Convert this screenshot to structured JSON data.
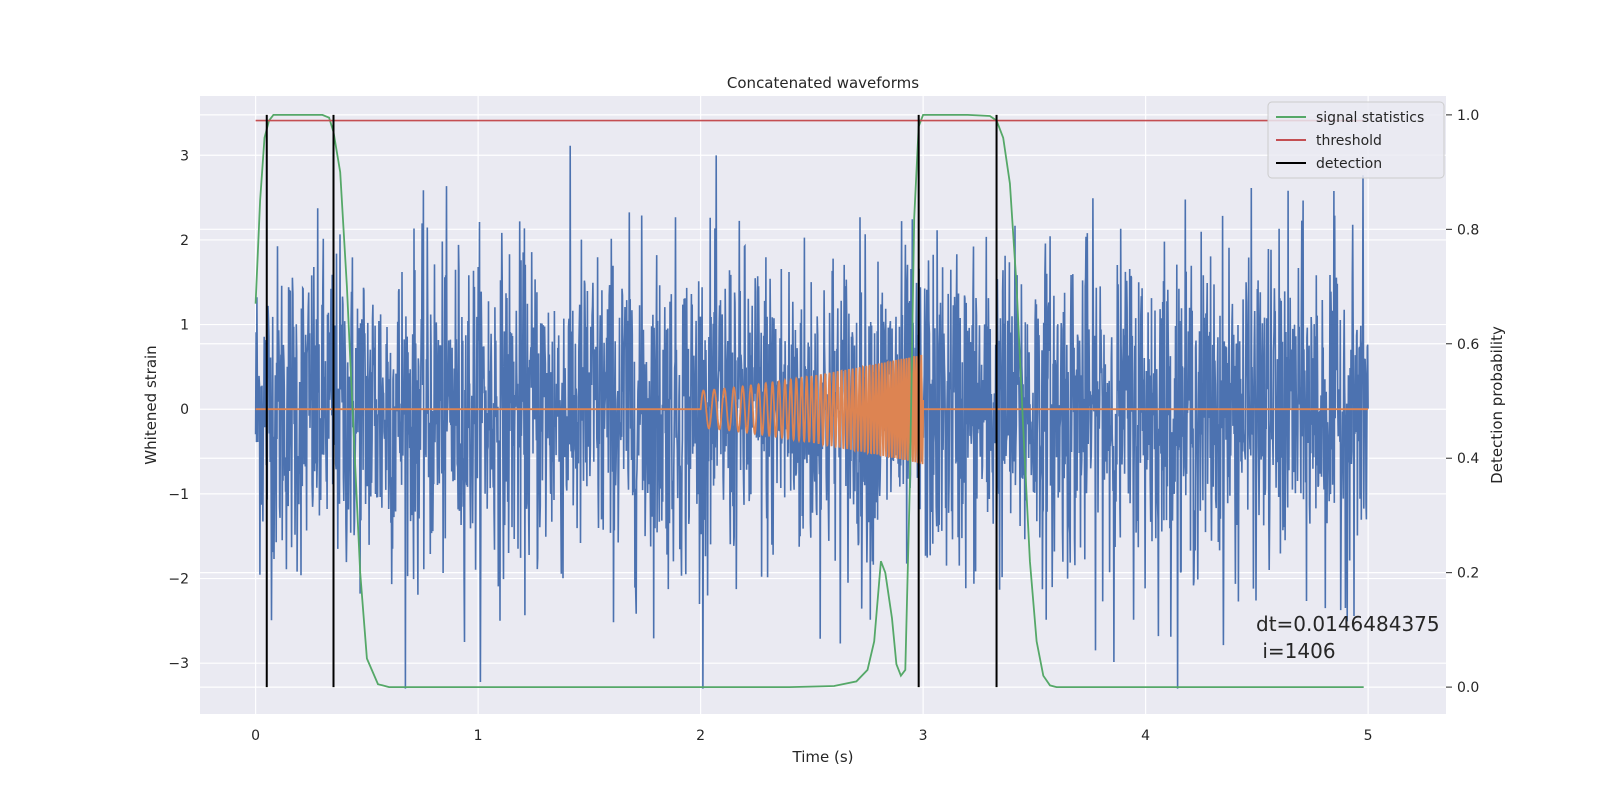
{
  "chart_data": {
    "type": "line",
    "title": "Concatenated waveforms",
    "xlabel": "Time (s)",
    "ylabel": "Whitened strain",
    "y2label": "Detection probability",
    "xlim": [
      -0.25,
      5.35
    ],
    "ylim": [
      -3.6,
      3.7
    ],
    "y2lim": [
      -0.047,
      1.033
    ],
    "xticks": [
      0,
      1,
      2,
      3,
      4,
      5
    ],
    "yticks": [
      -3,
      -2,
      -1,
      0,
      1,
      2,
      3
    ],
    "y2ticks": [
      0.0,
      0.2,
      0.4,
      0.6,
      0.8,
      1.0
    ],
    "xtick_labels": [
      "0",
      "1",
      "2",
      "3",
      "4",
      "5"
    ],
    "ytick_labels": [
      "−3",
      "−2",
      "−1",
      "0",
      "1",
      "2",
      "3"
    ],
    "y2tick_labels": [
      "0.0",
      "0.2",
      "0.4",
      "0.6",
      "0.8",
      "1.0"
    ],
    "grid": true,
    "legend_position": "top-right",
    "series": [
      {
        "name": "whitened strain",
        "color": "#4c72b0",
        "axis": "left",
        "x_range": [
          0,
          5
        ],
        "amplitude_range": [
          -3.3,
          3.3
        ],
        "description_kind": "noise"
      },
      {
        "name": "waveform",
        "color": "#dd8452",
        "axis": "left",
        "x_range": [
          0,
          5
        ],
        "chirp": {
          "start": 2.0,
          "end": 3.0,
          "amp_start": 0.22,
          "amp_end": 0.65,
          "f_start": 20,
          "f_end": 95
        }
      },
      {
        "name": "signal statistics",
        "color": "#55a868",
        "axis": "right",
        "x": [
          0.0,
          0.02,
          0.04,
          0.06,
          0.08,
          0.1,
          0.15,
          0.2,
          0.25,
          0.3,
          0.33,
          0.35,
          0.38,
          0.41,
          0.44,
          0.47,
          0.5,
          0.55,
          0.6,
          1.0,
          1.5,
          2.0,
          2.4,
          2.6,
          2.7,
          2.75,
          2.78,
          2.81,
          2.83,
          2.86,
          2.88,
          2.9,
          2.92,
          2.94,
          2.96,
          2.98,
          3.0,
          3.02,
          3.1,
          3.2,
          3.3,
          3.33,
          3.36,
          3.39,
          3.42,
          3.45,
          3.48,
          3.51,
          3.54,
          3.57,
          3.6,
          4.0,
          4.5,
          4.98
        ],
        "y": [
          0.67,
          0.85,
          0.96,
          0.99,
          1.0,
          1.0,
          1.0,
          1.0,
          1.0,
          1.0,
          0.995,
          0.97,
          0.9,
          0.7,
          0.45,
          0.2,
          0.05,
          0.005,
          0.0,
          0.0,
          0.0,
          0.0,
          0.0,
          0.002,
          0.01,
          0.03,
          0.08,
          0.22,
          0.2,
          0.12,
          0.04,
          0.02,
          0.03,
          0.35,
          0.82,
          0.98,
          1.0,
          1.0,
          1.0,
          1.0,
          0.998,
          0.99,
          0.96,
          0.88,
          0.7,
          0.45,
          0.22,
          0.08,
          0.02,
          0.003,
          0.0,
          0.0,
          0.0,
          0.0
        ]
      },
      {
        "name": "threshold",
        "color": "#c44e52",
        "axis": "right",
        "x": [
          0,
          4.98
        ],
        "y": [
          0.99,
          0.99
        ]
      },
      {
        "name": "detection",
        "color": "#000000",
        "axis": "right",
        "vlines": [
          0.05,
          0.35,
          2.98,
          3.33
        ],
        "ymin": 0.0,
        "ymax": 1.0
      }
    ],
    "legend": [
      "signal statistics",
      "threshold",
      "detection"
    ],
    "annotations": [
      "dt=0.0146484375",
      " i=1406"
    ],
    "colors": {
      "axes_bg": "#eaeaf2",
      "grid": "#ffffff",
      "legend_bg": "#eaeaf2",
      "legend_border": "#cccccc"
    }
  }
}
